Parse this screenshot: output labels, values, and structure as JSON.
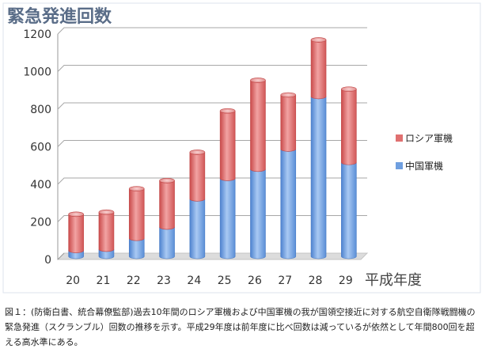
{
  "chart_data": {
    "type": "bar",
    "stacked": true,
    "title": "緊急発進回数",
    "xlabel": "平成年度",
    "ylabel": "",
    "categories": [
      "20",
      "21",
      "22",
      "23",
      "24",
      "25",
      "26",
      "27",
      "28",
      "29"
    ],
    "series": [
      {
        "name": "中国軍機",
        "color": "#6f9fe0",
        "values": [
          31,
          38,
          96,
          156,
          306,
          415,
          464,
          571,
          851,
          500
        ]
      },
      {
        "name": "ロシア軍機",
        "color": "#e07070",
        "values": [
          193,
          197,
          264,
          247,
          248,
          359,
          473,
          288,
          301,
          390
        ]
      }
    ],
    "legend_order": [
      "ロシア軍機",
      "中国軍機"
    ],
    "yticks": [
      0,
      200,
      400,
      600,
      800,
      1000,
      1200
    ],
    "ylim": [
      0,
      1200
    ],
    "grid": true,
    "legend": "right"
  },
  "caption": {
    "lines": [
      "図１：(防衛白書、統合幕僚監部)過去10年間のロシア軍機および中国軍機の我が国領空接近に対する航空自衛隊戦闘機の",
      "緊急発進（スクランブル）回数の推移を示す。平成29年度は前年度に比べ回数は減っているが依然として年間800回を超",
      "える高水準にある。"
    ]
  }
}
